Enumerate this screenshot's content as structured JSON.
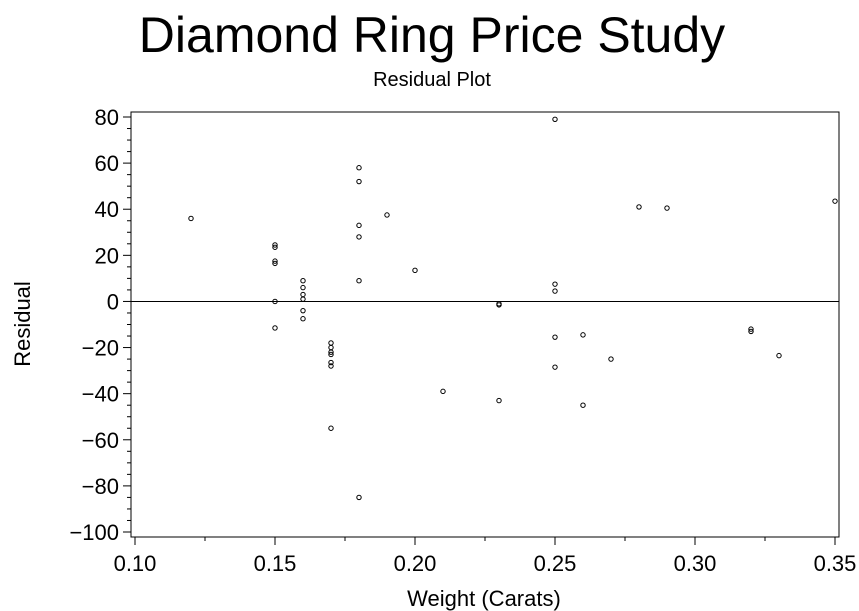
{
  "chart_data": {
    "type": "scatter",
    "title": "Diamond Ring Price Study",
    "subtitle": "Residual Plot",
    "xlabel": "Weight (Carats)",
    "ylabel": "Residual",
    "xlim": [
      0.1,
      0.35
    ],
    "ylim": [
      -100,
      80
    ],
    "x_ticks": [
      0.1,
      0.15,
      0.2,
      0.25,
      0.3,
      0.35
    ],
    "x_tick_labels": [
      "0.10",
      "0.15",
      "0.20",
      "0.25",
      "0.30",
      "0.35"
    ],
    "y_ticks": [
      -100,
      -80,
      -60,
      -40,
      -20,
      0,
      20,
      40,
      60,
      80
    ],
    "y_tick_labels": [
      "−100",
      "−80",
      "−60",
      "−40",
      "−20",
      "0",
      "20",
      "40",
      "60",
      "80"
    ],
    "y_minor_step": 5,
    "reference_line_y": 0,
    "grid": false,
    "points": [
      {
        "x": 0.12,
        "y": 36
      },
      {
        "x": 0.15,
        "y": 24.5
      },
      {
        "x": 0.15,
        "y": 23.5
      },
      {
        "x": 0.15,
        "y": 17.5
      },
      {
        "x": 0.15,
        "y": 16.5
      },
      {
        "x": 0.15,
        "y": 0
      },
      {
        "x": 0.15,
        "y": -11.5
      },
      {
        "x": 0.16,
        "y": 9
      },
      {
        "x": 0.16,
        "y": 6
      },
      {
        "x": 0.16,
        "y": 3
      },
      {
        "x": 0.16,
        "y": 1
      },
      {
        "x": 0.16,
        "y": -4
      },
      {
        "x": 0.16,
        "y": -7.5
      },
      {
        "x": 0.17,
        "y": -18
      },
      {
        "x": 0.17,
        "y": -20
      },
      {
        "x": 0.17,
        "y": -22
      },
      {
        "x": 0.17,
        "y": -23
      },
      {
        "x": 0.17,
        "y": -26.5
      },
      {
        "x": 0.17,
        "y": -28
      },
      {
        "x": 0.17,
        "y": -55
      },
      {
        "x": 0.18,
        "y": 58
      },
      {
        "x": 0.18,
        "y": 52
      },
      {
        "x": 0.18,
        "y": 33
      },
      {
        "x": 0.18,
        "y": 28
      },
      {
        "x": 0.18,
        "y": 9
      },
      {
        "x": 0.18,
        "y": -85
      },
      {
        "x": 0.19,
        "y": 37.5
      },
      {
        "x": 0.2,
        "y": 13.5
      },
      {
        "x": 0.21,
        "y": -39
      },
      {
        "x": 0.23,
        "y": -1
      },
      {
        "x": 0.23,
        "y": -1.5
      },
      {
        "x": 0.23,
        "y": -43
      },
      {
        "x": 0.25,
        "y": 79
      },
      {
        "x": 0.25,
        "y": 7.5
      },
      {
        "x": 0.25,
        "y": 4.5
      },
      {
        "x": 0.25,
        "y": -15.5
      },
      {
        "x": 0.25,
        "y": -28.5
      },
      {
        "x": 0.26,
        "y": -14.5
      },
      {
        "x": 0.26,
        "y": -45
      },
      {
        "x": 0.27,
        "y": -25
      },
      {
        "x": 0.28,
        "y": 41
      },
      {
        "x": 0.29,
        "y": 40.5
      },
      {
        "x": 0.32,
        "y": -12
      },
      {
        "x": 0.32,
        "y": -13
      },
      {
        "x": 0.33,
        "y": -23.5
      },
      {
        "x": 0.35,
        "y": 43.5
      }
    ]
  }
}
